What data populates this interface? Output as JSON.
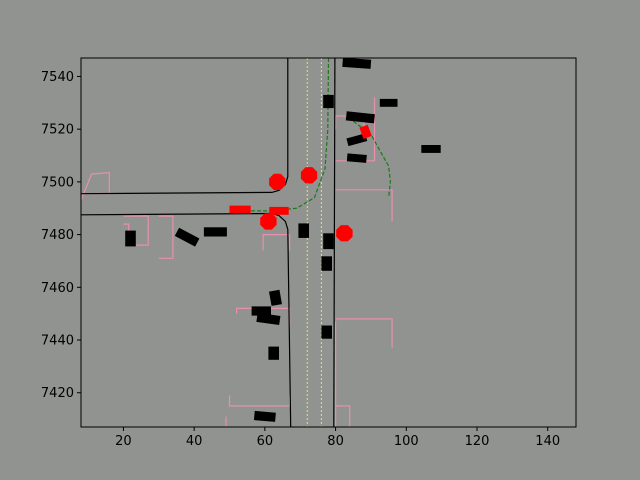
{
  "chart_data": {
    "type": "scatter",
    "title": "",
    "xlabel": "",
    "ylabel": "",
    "xlim": [
      8,
      148
    ],
    "ylim": [
      7407,
      7547
    ],
    "xticks": [
      20,
      40,
      60,
      80,
      100,
      120,
      140
    ],
    "yticks": [
      7420,
      7440,
      7460,
      7480,
      7500,
      7520,
      7540
    ],
    "xtick_labels": [
      "20",
      "40",
      "60",
      "80",
      "100",
      "120",
      "140"
    ],
    "ytick_labels": [
      "7420",
      "7440",
      "7460",
      "7480",
      "7500",
      "7520",
      "7540"
    ],
    "grid": false,
    "colors": {
      "background": "#919391",
      "road_edge": "#000000",
      "lane_marking": "#e8e84a",
      "planned_path": "#1a7a1a",
      "crosswalk": "#e88fb0",
      "vehicle": "#000000",
      "highlight": "#ff0000"
    },
    "road_edges": [
      [
        [
          8,
          7495.5
        ],
        [
          62,
          7496
        ],
        [
          64,
          7496.8
        ],
        [
          65.8,
          7499
        ],
        [
          66.5,
          7502
        ],
        [
          66.5,
          7547
        ]
      ],
      [
        [
          8,
          7487.5
        ],
        [
          62,
          7488
        ],
        [
          64,
          7487.2
        ],
        [
          65.8,
          7485
        ],
        [
          66.5,
          7482
        ],
        [
          67.3,
          7407
        ]
      ],
      [
        [
          79.8,
          7547
        ],
        [
          79.5,
          7407
        ]
      ]
    ],
    "lane_markings": [
      [
        [
          72,
          7547
        ],
        [
          72,
          7407
        ]
      ],
      [
        [
          76,
          7547
        ],
        [
          76,
          7407
        ]
      ]
    ],
    "planned_path": [
      [
        [
          78,
          7547
        ],
        [
          77.8,
          7520
        ],
        [
          77,
          7505
        ],
        [
          74,
          7494
        ],
        [
          69,
          7490
        ],
        [
          62,
          7489
        ],
        [
          52,
          7489
        ]
      ],
      [
        [
          85,
          7523
        ],
        [
          90,
          7518
        ],
        [
          95,
          7506
        ],
        [
          95.5,
          7500
        ],
        [
          95,
          7494
        ]
      ]
    ],
    "crosswalks": [
      [
        [
          8,
          7493
        ],
        [
          11,
          7503
        ],
        [
          16,
          7503.5
        ],
        [
          16,
          7495.5
        ],
        [
          8,
          7495.5
        ]
      ],
      [
        [
          20,
          7484
        ],
        [
          21.5,
          7484
        ],
        [
          21.5,
          7476
        ],
        [
          27,
          7476
        ],
        [
          27,
          7487
        ],
        [
          20,
          7487
        ]
      ],
      [
        [
          30,
          7471
        ],
        [
          34,
          7471
        ],
        [
          34,
          7487
        ],
        [
          30,
          7487
        ]
      ],
      [
        [
          59.5,
          7474
        ],
        [
          59.5,
          7480
        ],
        [
          67,
          7480
        ],
        [
          67,
          7474
        ]
      ],
      [
        [
          80,
          7520
        ],
        [
          80,
          7525
        ],
        [
          88,
          7525
        ],
        [
          88,
          7520
        ]
      ],
      [
        [
          80,
          7508
        ],
        [
          91,
          7508
        ],
        [
          91,
          7532
        ]
      ],
      [
        [
          80,
          7497
        ],
        [
          96,
          7497
        ],
        [
          96,
          7485
        ]
      ],
      [
        [
          52,
          7450
        ],
        [
          52,
          7452
        ],
        [
          67,
          7452
        ],
        [
          67,
          7445
        ]
      ],
      [
        [
          80,
          7448
        ],
        [
          96,
          7448
        ],
        [
          96,
          7437
        ]
      ],
      [
        [
          50,
          7419
        ],
        [
          50,
          7415
        ],
        [
          67,
          7415
        ],
        [
          67,
          7419
        ]
      ],
      [
        [
          80,
          7415
        ],
        [
          84,
          7415
        ],
        [
          84,
          7407
        ]
      ],
      [
        [
          80,
          7447
        ],
        [
          80,
          7407
        ]
      ],
      [
        [
          49,
          7407
        ],
        [
          49,
          7411
        ]
      ]
    ],
    "vehicles": [
      {
        "x": 86,
        "y": 7545,
        "w": 8,
        "h": 3.5,
        "angle": -4
      },
      {
        "x": 78,
        "y": 7530.5,
        "w": 3,
        "h": 5,
        "angle": 0
      },
      {
        "x": 95,
        "y": 7530,
        "w": 5,
        "h": 3,
        "angle": 0
      },
      {
        "x": 87,
        "y": 7524.5,
        "w": 8,
        "h": 3.5,
        "angle": -6
      },
      {
        "x": 86,
        "y": 7516,
        "w": 5.5,
        "h": 3,
        "angle": 15
      },
      {
        "x": 86,
        "y": 7509,
        "w": 5.5,
        "h": 3,
        "angle": -5
      },
      {
        "x": 107,
        "y": 7512.5,
        "w": 5.5,
        "h": 3,
        "angle": 0
      },
      {
        "x": 46,
        "y": 7481,
        "w": 6.5,
        "h": 3.5,
        "angle": 0
      },
      {
        "x": 38,
        "y": 7479,
        "w": 6.5,
        "h": 3.5,
        "angle": -28
      },
      {
        "x": 22,
        "y": 7478.5,
        "w": 3,
        "h": 6,
        "angle": 0
      },
      {
        "x": 71,
        "y": 7481.5,
        "w": 3,
        "h": 5.5,
        "angle": 0
      },
      {
        "x": 78,
        "y": 7477.5,
        "w": 3,
        "h": 6,
        "angle": 0
      },
      {
        "x": 77.5,
        "y": 7469,
        "w": 3,
        "h": 5.5,
        "angle": 0
      },
      {
        "x": 63,
        "y": 7456,
        "w": 3,
        "h": 5.5,
        "angle": 10
      },
      {
        "x": 59,
        "y": 7451,
        "w": 5.5,
        "h": 3.5,
        "angle": 0
      },
      {
        "x": 61,
        "y": 7448,
        "w": 6.5,
        "h": 3.5,
        "angle": -8
      },
      {
        "x": 77.5,
        "y": 7443,
        "w": 3,
        "h": 5,
        "angle": 0
      },
      {
        "x": 62.5,
        "y": 7435,
        "w": 3,
        "h": 5,
        "angle": 0
      },
      {
        "x": 60,
        "y": 7411,
        "w": 6,
        "h": 3.5,
        "angle": -5
      }
    ],
    "highlighted_vehicles": [
      {
        "x": 53,
        "y": 7489.5,
        "w": 6,
        "h": 3,
        "angle": 0
      },
      {
        "x": 64,
        "y": 7489,
        "w": 5.5,
        "h": 3,
        "angle": 0
      },
      {
        "x": 88.5,
        "y": 7519,
        "w": 2.5,
        "h": 4.5,
        "angle": 20
      }
    ],
    "pedestrians": [
      {
        "x": 63.5,
        "y": 7500,
        "r": 2.5
      },
      {
        "x": 72.5,
        "y": 7502.5,
        "r": 2.5
      },
      {
        "x": 61,
        "y": 7485,
        "r": 2.5
      },
      {
        "x": 82.5,
        "y": 7480.5,
        "r": 2.5
      }
    ]
  }
}
